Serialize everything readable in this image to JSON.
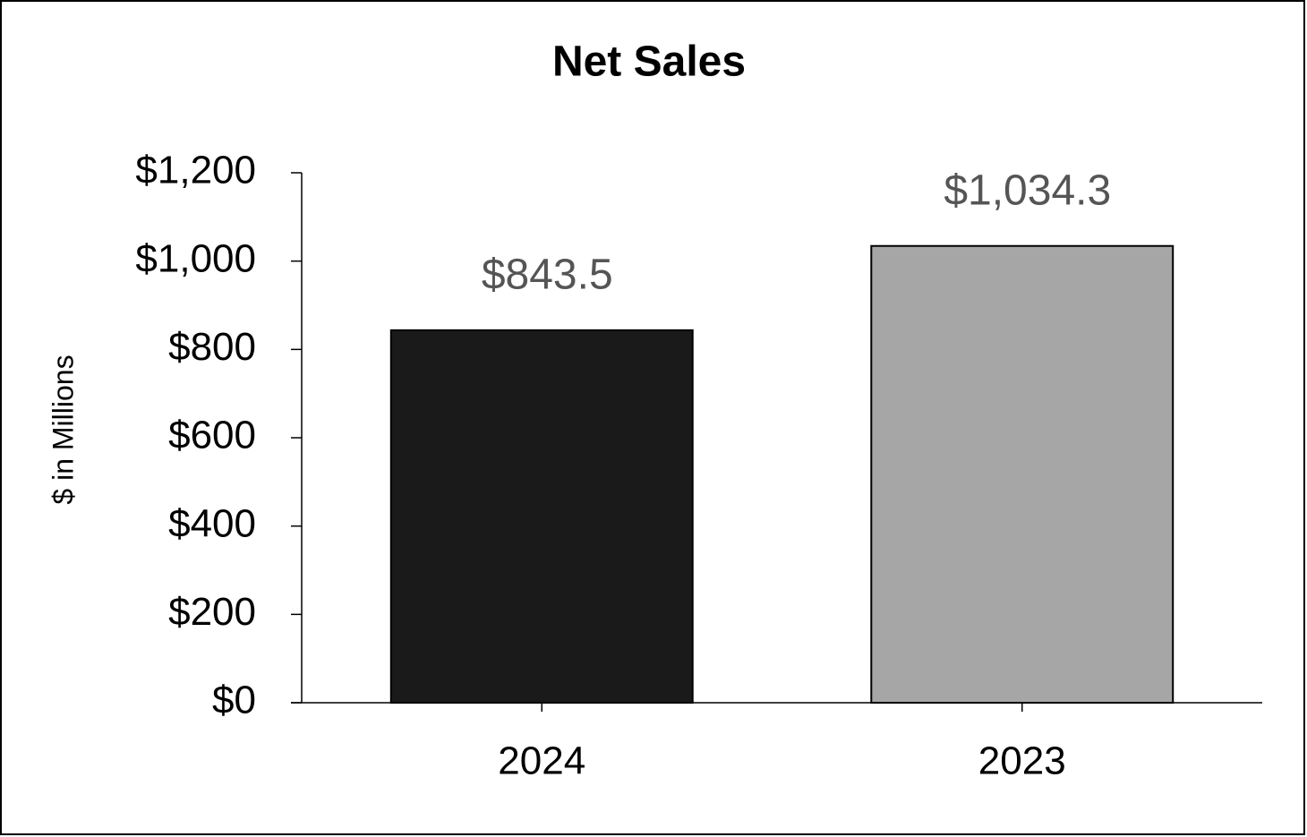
{
  "chart_data": {
    "type": "bar",
    "title": "Net Sales",
    "y_label": "$ in Millions",
    "categories": [
      "2024",
      "2023"
    ],
    "values": [
      843.5,
      1034.3
    ],
    "value_labels": [
      "$843.5",
      "$1,034.3"
    ],
    "colors": [
      "#1a1a1a",
      "#a6a6a6"
    ],
    "ylim": [
      0,
      1200
    ],
    "yticks": [
      {
        "value": 0,
        "label": "$0"
      },
      {
        "value": 200,
        "label": "$200"
      },
      {
        "value": 400,
        "label": "$400"
      },
      {
        "value": 600,
        "label": "$600"
      },
      {
        "value": 800,
        "label": "$800"
      },
      {
        "value": 1000,
        "label": "$1,000"
      },
      {
        "value": 1200,
        "label": "$1,200"
      }
    ],
    "grid": false
  }
}
